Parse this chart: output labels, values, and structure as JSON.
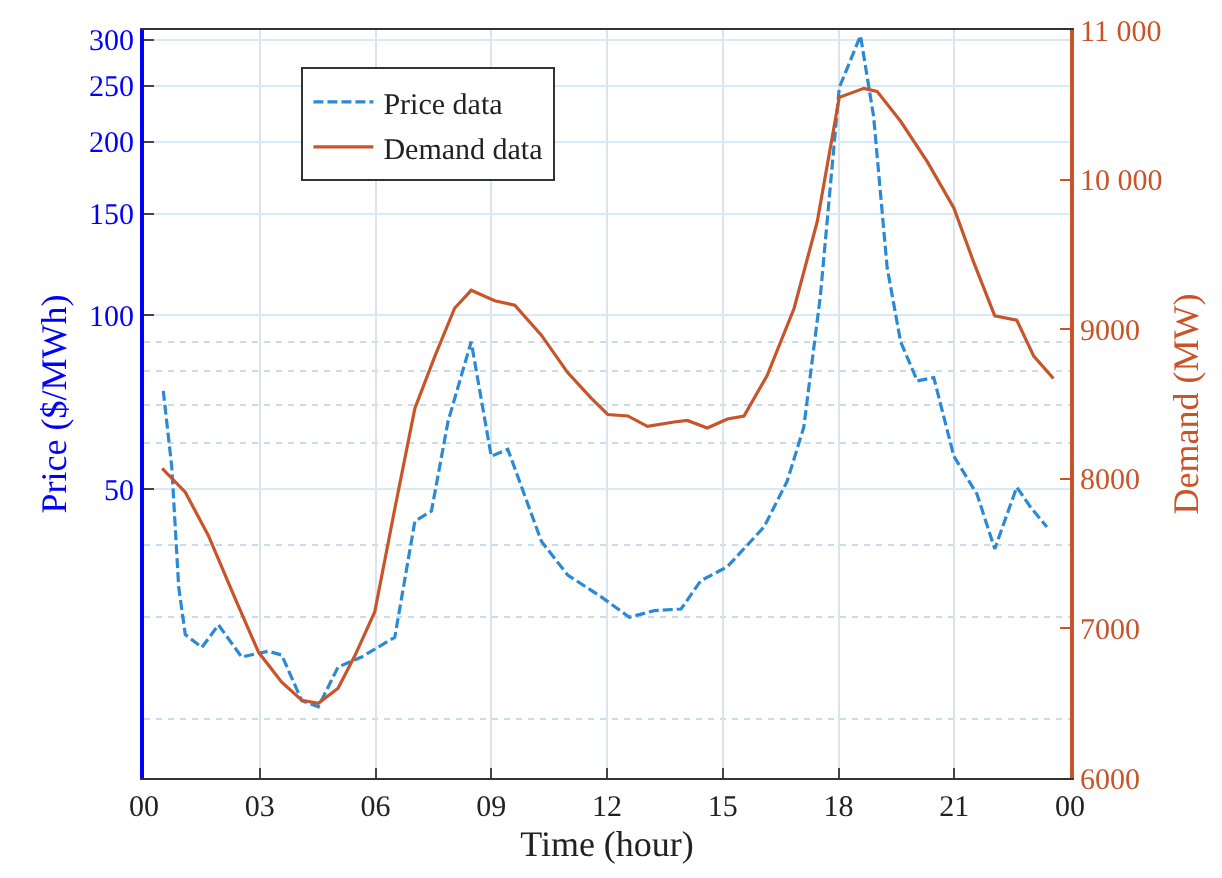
{
  "chart_data": {
    "type": "line",
    "xlabel": "Time (hour)",
    "ylabel": "Price ($/MWh)",
    "y2label": "Demand (MW)",
    "xlim": [
      0,
      24
    ],
    "xticks": [
      {
        "value": 0,
        "label": "00"
      },
      {
        "value": 3,
        "label": "03"
      },
      {
        "value": 6,
        "label": "06"
      },
      {
        "value": 9,
        "label": "09"
      },
      {
        "value": 12,
        "label": "12"
      },
      {
        "value": 15,
        "label": "15"
      },
      {
        "value": 18,
        "label": "18"
      },
      {
        "value": 21,
        "label": "21"
      },
      {
        "value": 24,
        "label": "00"
      }
    ],
    "log": "y",
    "ylim": [
      15.8,
      312
    ],
    "yticks": [
      {
        "value": 20,
        "label": null
      },
      {
        "value": 30,
        "label": null
      },
      {
        "value": 40,
        "label": null
      },
      50,
      {
        "value": 60,
        "label": null
      },
      {
        "value": 70,
        "label": null
      },
      {
        "value": 80,
        "label": null
      },
      {
        "value": 90,
        "label": null
      },
      100,
      150,
      200,
      250,
      300
    ],
    "y2lim": [
      6000,
      11000
    ],
    "y2ticks": [
      6000,
      7000,
      8000,
      9000,
      {
        "value": 10000,
        "label": "10 000"
      },
      {
        "value": 11000,
        "label": "11 000"
      }
    ],
    "grid": true,
    "legend": "top left",
    "series": [
      {
        "name": "Price data",
        "color": "#2a8ad4",
        "line_style": "dashed",
        "axis": "y",
        "x": [
          0.5,
          0.72,
          0.9,
          1.07,
          1.5,
          1.93,
          2.53,
          3.22,
          3.57,
          4.09,
          4.52,
          5.03,
          5.64,
          6.5,
          7.02,
          7.45,
          7.88,
          8.48,
          9.0,
          9.43,
          10.3,
          10.98,
          11.86,
          12.58,
          13.23,
          13.92,
          14.43,
          15.12,
          16.07,
          16.67,
          17.1,
          17.53,
          18.02,
          18.57,
          18.91,
          19.26,
          19.61,
          20.04,
          20.47,
          20.99,
          21.59,
          22.05,
          22.62,
          22.97,
          23.4
        ],
        "values": [
          74,
          54.6,
          33.8,
          28,
          26.6,
          29.1,
          25.6,
          26.2,
          25.8,
          21.5,
          21,
          24.6,
          25.6,
          27.7,
          44,
          45.8,
          65.5,
          90,
          57,
          58.6,
          40.6,
          35.5,
          32.5,
          30,
          30.8,
          31,
          34.7,
          36.7,
          43,
          51.6,
          64,
          108,
          248,
          305,
          221,
          121,
          90,
          77,
          78,
          57,
          49,
          39.4,
          50.4,
          46.6,
          43
        ]
      },
      {
        "name": "Demand data",
        "color": "#c8552a",
        "line_style": "solid",
        "axis": "y2",
        "x": [
          0.47,
          1.07,
          1.67,
          2.36,
          2.97,
          3.57,
          4.09,
          4.52,
          5.03,
          5.47,
          5.98,
          6.5,
          7.02,
          7.54,
          8.05,
          8.48,
          9.09,
          9.61,
          10.3,
          10.98,
          11.59,
          12.02,
          12.54,
          13.05,
          13.74,
          14.08,
          14.6,
          15.12,
          15.55,
          16.15,
          16.85,
          17.45,
          18.02,
          18.66,
          19.0,
          19.61,
          20.3,
          20.99,
          21.5,
          22.05,
          22.62,
          23.06,
          23.57
        ],
        "values": [
          8070,
          7910,
          7620,
          7200,
          6840,
          6640,
          6520,
          6500,
          6600,
          6820,
          7110,
          7800,
          8470,
          8820,
          9140,
          9260,
          9190,
          9160,
          8960,
          8710,
          8540,
          8430,
          8420,
          8350,
          8380,
          8390,
          8340,
          8400,
          8420,
          8690,
          9140,
          9720,
          10550,
          10610,
          10590,
          10390,
          10120,
          9810,
          9450,
          9090,
          9060,
          8820,
          8670
        ]
      }
    ]
  }
}
